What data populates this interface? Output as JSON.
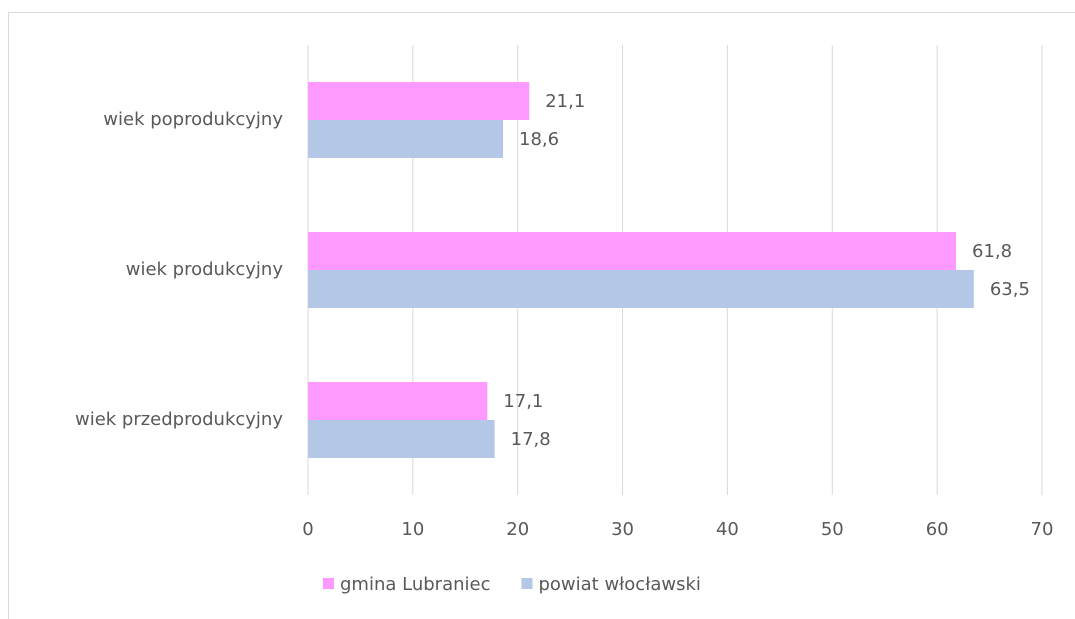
{
  "chart_data": {
    "type": "barh",
    "categories": [
      "wiek poprodukcyjny",
      "wiek produkcyjny",
      "wiek przedprodukcyjny"
    ],
    "series": [
      {
        "name": "gmina Lubraniec",
        "color": "#ff99ff",
        "values": [
          21.1,
          61.8,
          17.1
        ],
        "value_labels": [
          "21,1",
          "61,8",
          "17,1"
        ]
      },
      {
        "name": "powiat włocławski",
        "color": "#b4c7e7",
        "values": [
          18.6,
          63.5,
          17.8
        ],
        "value_labels": [
          "18,6",
          "63,5",
          "17,8"
        ]
      }
    ],
    "xlim": [
      0,
      70
    ],
    "xticks": [
      0,
      10,
      20,
      30,
      40,
      50,
      60,
      70
    ],
    "grid": true,
    "legend": "bottom"
  }
}
